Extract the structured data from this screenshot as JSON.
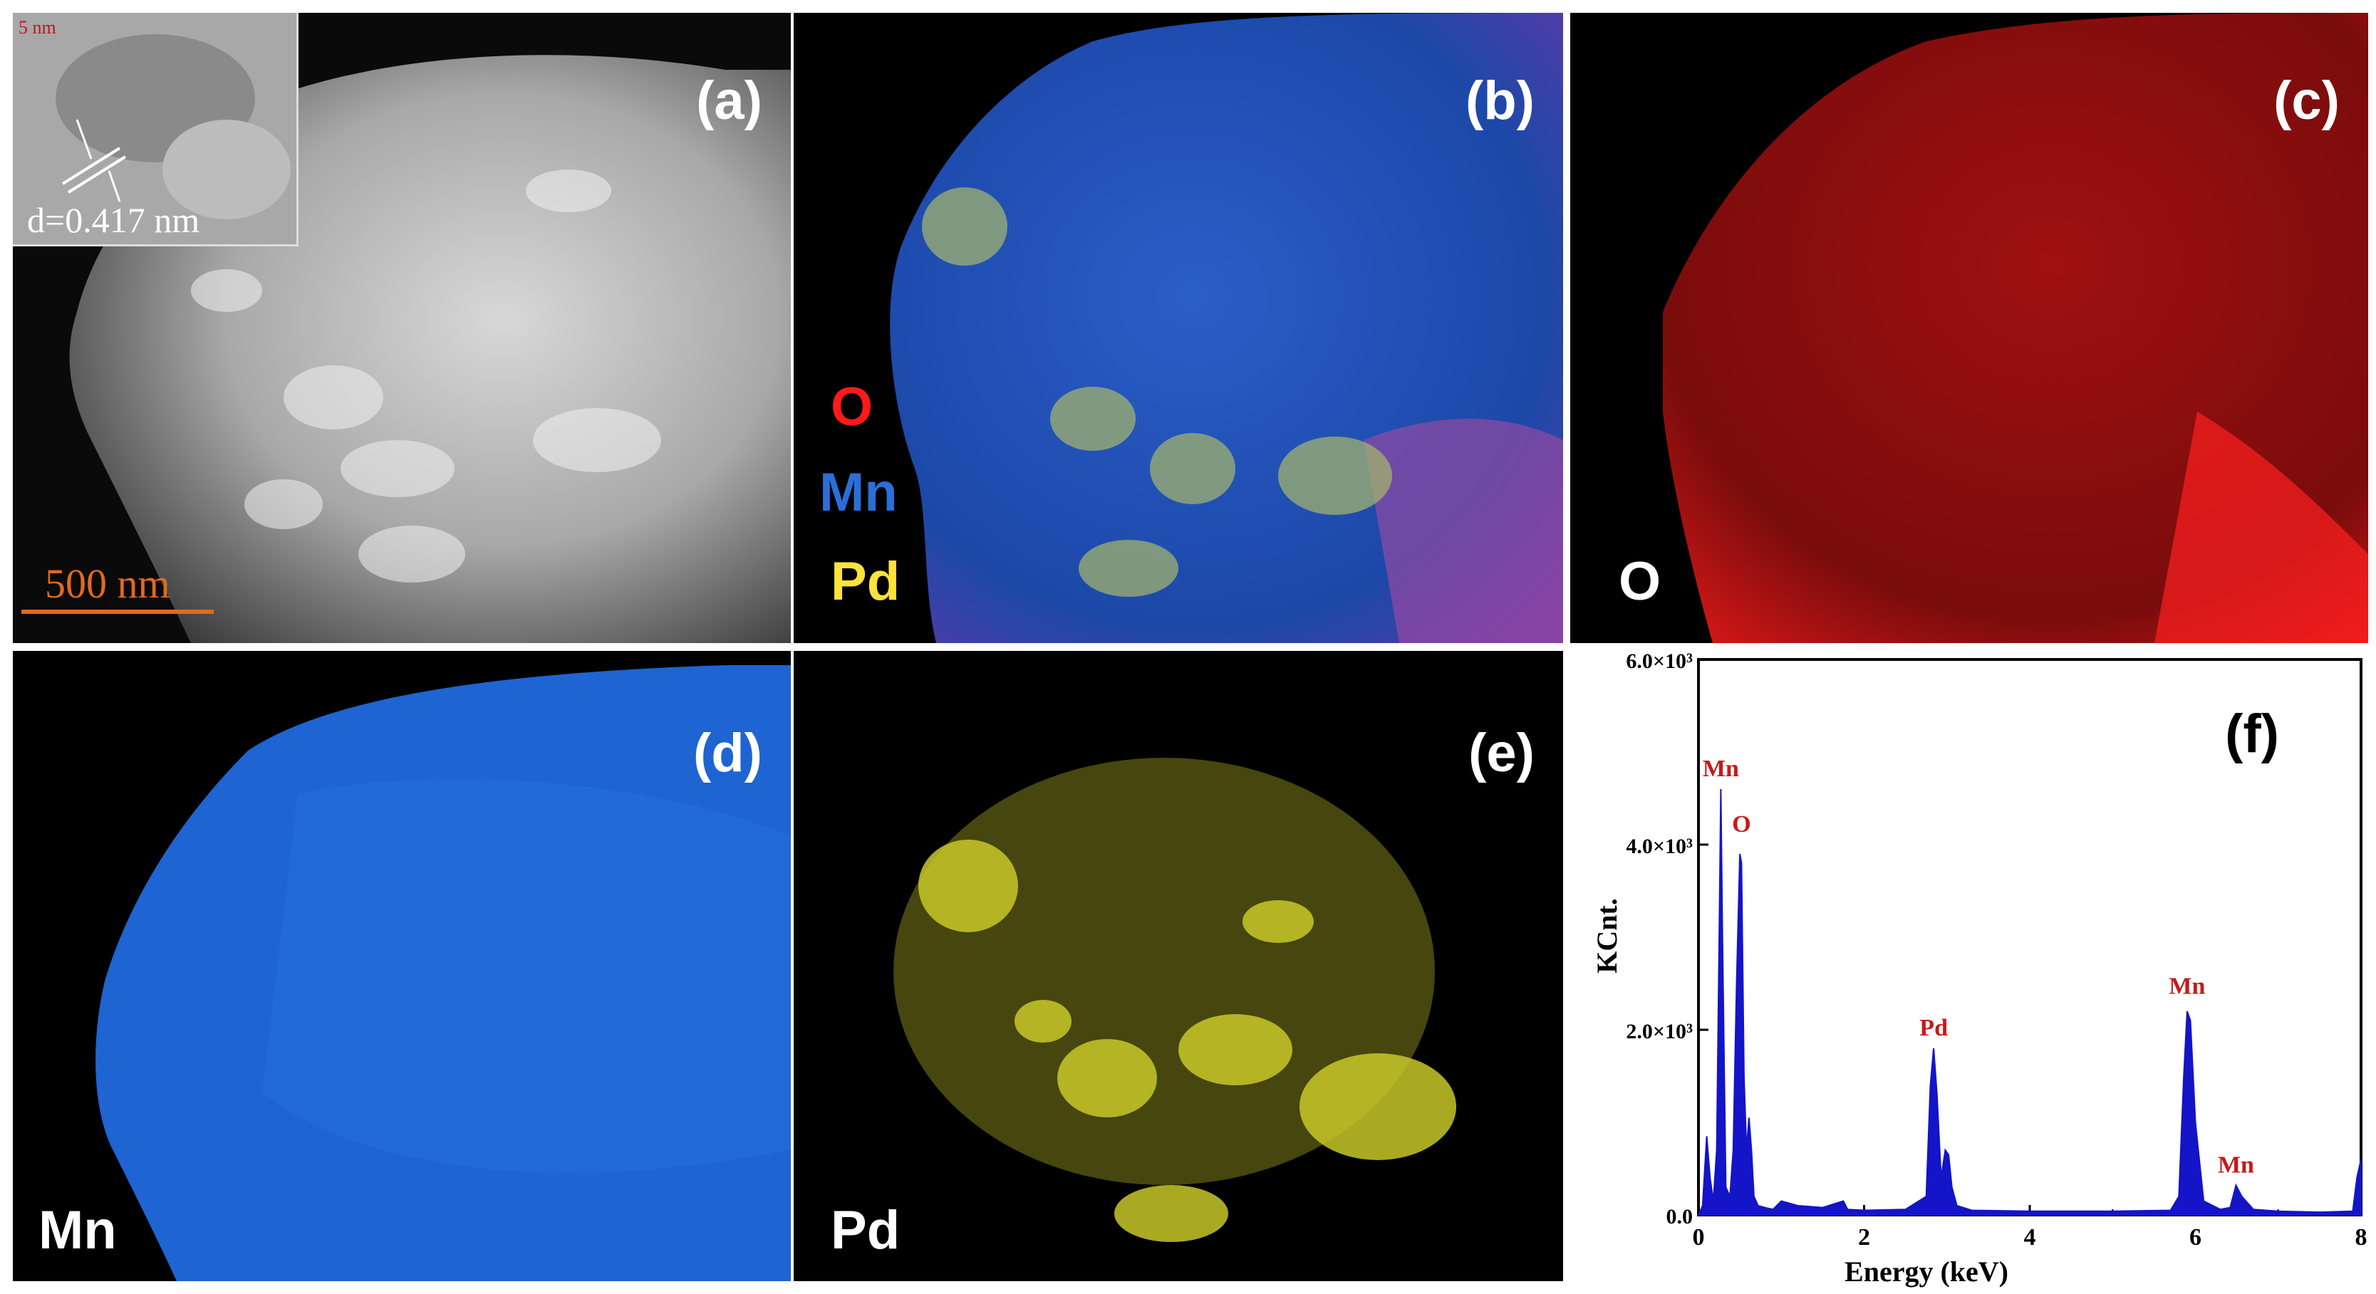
{
  "panels": {
    "a": {
      "label": "(a)",
      "inset_scale": "5 nm",
      "inset_d": "d=0.417 nm",
      "scalebar": "500 nm"
    },
    "b": {
      "label": "(b)",
      "legend": [
        {
          "text": "O",
          "color": "#ff1a1a"
        },
        {
          "text": "Mn",
          "color": "#2a6fd8"
        },
        {
          "text": "Pd",
          "color": "#ffe23a"
        }
      ]
    },
    "c": {
      "label": "(c)",
      "element": "O",
      "color": "#e01414"
    },
    "d": {
      "label": "(d)",
      "element": "Mn",
      "color": "#1e64d2"
    },
    "e": {
      "label": "(e)",
      "element": "Pd",
      "color": "#c8c828"
    },
    "f": {
      "label": "(f)"
    }
  },
  "chart_data": {
    "type": "line",
    "title": "",
    "xlabel": "Energy (keV)",
    "ylabel": "KCnt.",
    "xlim": [
      0,
      8
    ],
    "ylim": [
      0,
      6000
    ],
    "xticks": [
      "0",
      "2",
      "4",
      "6",
      "8"
    ],
    "yticks": [
      "0.0",
      "2.0×10³",
      "4.0×10³",
      "6.0×10³"
    ],
    "peak_labels": [
      {
        "text": "Mn",
        "x": 0.27,
        "y": 4600
      },
      {
        "text": "O",
        "x": 0.52,
        "y": 4000
      },
      {
        "text": "Pd",
        "x": 2.84,
        "y": 1800
      },
      {
        "text": "Mn",
        "x": 5.9,
        "y": 2250
      },
      {
        "text": "Mn",
        "x": 6.49,
        "y": 320
      }
    ],
    "series": [
      {
        "color": "#1414c8",
        "x": [
          0,
          0.05,
          0.1,
          0.14,
          0.18,
          0.22,
          0.25,
          0.27,
          0.29,
          0.33,
          0.38,
          0.42,
          0.46,
          0.5,
          0.52,
          0.55,
          0.58,
          0.61,
          0.64,
          0.67,
          0.72,
          0.8,
          0.9,
          1.0,
          1.2,
          1.5,
          1.75,
          1.8,
          2.0,
          2.5,
          2.75,
          2.8,
          2.84,
          2.88,
          2.93,
          2.98,
          3.02,
          3.06,
          3.12,
          3.3,
          4.0,
          5.0,
          5.7,
          5.8,
          5.86,
          5.9,
          5.94,
          6.0,
          6.1,
          6.3,
          6.42,
          6.49,
          6.56,
          6.7,
          7.0,
          7.5,
          7.9,
          7.95,
          8.0
        ],
        "y": [
          0,
          100,
          850,
          400,
          150,
          700,
          3000,
          4600,
          3000,
          300,
          200,
          700,
          2500,
          3900,
          3800,
          1500,
          700,
          1050,
          700,
          200,
          100,
          80,
          60,
          150,
          100,
          80,
          150,
          60,
          50,
          60,
          200,
          1400,
          1800,
          1300,
          400,
          700,
          650,
          300,
          100,
          50,
          40,
          40,
          50,
          200,
          1500,
          2200,
          2100,
          1000,
          150,
          60,
          80,
          320,
          200,
          60,
          40,
          30,
          40,
          400,
          600
        ]
      }
    ]
  }
}
